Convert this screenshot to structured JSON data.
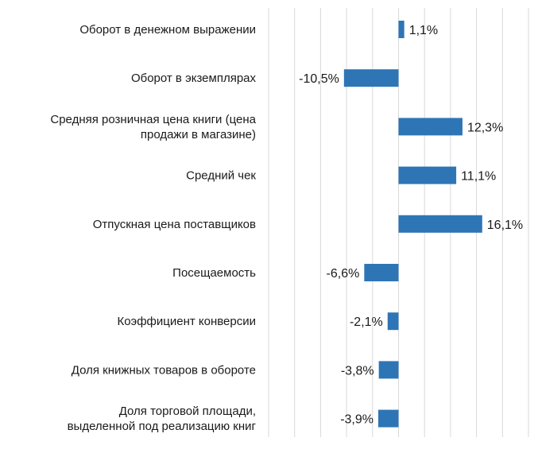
{
  "chart_data": {
    "type": "bar",
    "orientation": "horizontal",
    "title": "",
    "xlabel": "",
    "ylabel": "",
    "categories": [
      "Оборот в денежном выражении",
      "Оборот в экземплярах",
      "Средняя розничная цена книги (цена продажи в магазине)",
      "Средний чек",
      "Отпускная цена поставщиков",
      "Посещаемость",
      "Коэффициент конверсии",
      "Доля книжных товаров в обороте",
      "Доля торговой площади, выделенной под реализацию книг"
    ],
    "category_lines": [
      [
        "Оборот в денежном выражении"
      ],
      [
        "Оборот в экземплярах"
      ],
      [
        "Средняя розничная цена книги (цена",
        "продажи в магазине)"
      ],
      [
        "Средний чек"
      ],
      [
        "Отпускная цена поставщиков"
      ],
      [
        "Посещаемость"
      ],
      [
        "Коэффициент конверсии"
      ],
      [
        "Доля книжных товаров в обороте"
      ],
      [
        "Доля торговой площади,",
        "выделенной под реализацию книг"
      ]
    ],
    "values": [
      1.1,
      -10.5,
      12.3,
      11.1,
      16.1,
      -6.6,
      -2.1,
      -3.8,
      -3.9
    ],
    "data_labels": [
      "1,1%",
      "-10,5%",
      "12,3%",
      "11,1%",
      "16,1%",
      "-6,6%",
      "-2,1%",
      "-3,8%",
      "-3,9%"
    ],
    "xlim": [
      -25,
      25
    ],
    "grid": true,
    "bar_color": "#2e75b6",
    "grid_color": "#d9d9d9"
  }
}
